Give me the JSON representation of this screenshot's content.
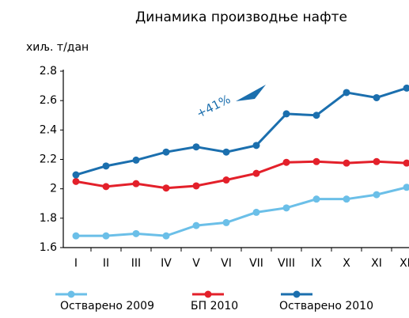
{
  "chart_data": {
    "type": "line",
    "title": "Динамика производње нафте",
    "y_label": "хиљ. т/дан",
    "annotation": "+41%",
    "categories": [
      "I",
      "II",
      "III",
      "IV",
      "V",
      "VI",
      "VII",
      "VIII",
      "IX",
      "X",
      "XI",
      "XII"
    ],
    "series": [
      {
        "name": "Остварено 2009",
        "color": "#6bbfe8",
        "values": [
          1.68,
          1.68,
          1.695,
          1.68,
          1.75,
          1.77,
          1.84,
          1.87,
          1.93,
          1.93,
          1.96,
          2.01
        ]
      },
      {
        "name": "БП 2010",
        "color": "#e3202a",
        "values": [
          2.05,
          2.015,
          2.035,
          2.005,
          2.02,
          2.06,
          2.105,
          2.18,
          2.185,
          2.175,
          2.185,
          2.175
        ]
      },
      {
        "name": "Остварено 2010",
        "color": "#1b6fae",
        "values": [
          2.095,
          2.155,
          2.195,
          2.25,
          2.285,
          2.25,
          2.295,
          2.51,
          2.5,
          2.655,
          2.62,
          2.685
        ]
      }
    ],
    "ylim": [
      1.6,
      2.8
    ],
    "yticks": [
      1.6,
      1.8,
      2,
      2.2,
      2.4,
      2.6,
      2.8
    ],
    "grid": false,
    "legend": "bottom"
  }
}
